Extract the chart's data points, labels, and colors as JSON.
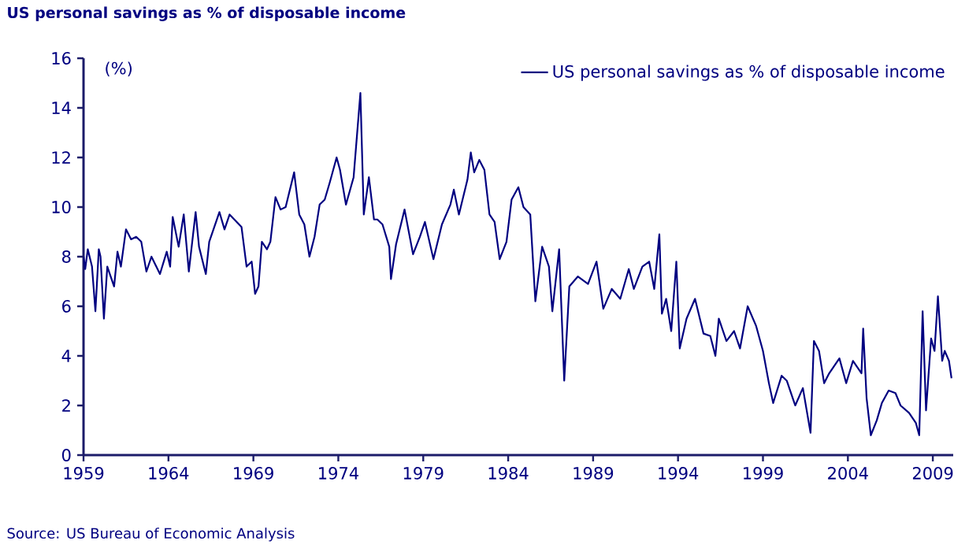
{
  "chart_data": {
    "type": "line",
    "title": "US personal savings as % of disposable income",
    "ylabel": "(%)",
    "annotations": [
      "Source: US Bureau of Economic Analysis"
    ],
    "xlim": [
      1959,
      2010.2
    ],
    "xticks": [
      1959,
      1964,
      1969,
      1974,
      1979,
      1984,
      1989,
      1994,
      1999,
      2004,
      2009
    ],
    "ylim": [
      0,
      16
    ],
    "yticks": [
      0,
      2,
      4,
      6,
      8,
      10,
      12,
      14,
      16
    ],
    "grid": false,
    "legend": "top right",
    "marker": "none",
    "line_style": "solid",
    "series": [
      {
        "name": "US personal savings as % of disposable income",
        "color": "#000080",
        "x": [
          1959.0,
          1959.1,
          1959.25,
          1959.5,
          1959.7,
          1959.9,
          1960.0,
          1960.2,
          1960.4,
          1960.8,
          1961.0,
          1961.2,
          1961.5,
          1961.8,
          1962.1,
          1962.4,
          1962.7,
          1963.0,
          1963.5,
          1963.9,
          1964.1,
          1964.25,
          1964.6,
          1964.9,
          1965.2,
          1965.6,
          1965.8,
          1966.2,
          1966.4,
          1967.0,
          1967.3,
          1967.6,
          1968.3,
          1968.6,
          1968.9,
          1969.1,
          1969.3,
          1969.5,
          1969.8,
          1970.0,
          1970.3,
          1970.6,
          1970.9,
          1971.4,
          1971.7,
          1972.0,
          1972.3,
          1972.6,
          1972.9,
          1973.2,
          1973.5,
          1973.9,
          1974.1,
          1974.45,
          1974.9,
          1975.3,
          1975.5,
          1975.8,
          1976.1,
          1976.3,
          1976.6,
          1977.0,
          1977.1,
          1977.4,
          1977.9,
          1978.4,
          1978.8,
          1979.1,
          1979.6,
          1980.1,
          1980.6,
          1980.8,
          1981.1,
          1981.6,
          1981.8,
          1982.0,
          1982.3,
          1982.6,
          1982.9,
          1983.2,
          1983.5,
          1983.9,
          1984.2,
          1984.6,
          1984.9,
          1985.3,
          1985.6,
          1986.0,
          1986.4,
          1986.6,
          1987.0,
          1987.3,
          1987.6,
          1988.1,
          1988.7,
          1989.2,
          1989.6,
          1990.1,
          1990.6,
          1991.1,
          1991.4,
          1991.9,
          1992.3,
          1992.6,
          1992.9,
          1993.05,
          1993.3,
          1993.6,
          1993.9,
          1994.1,
          1994.5,
          1995.0,
          1995.5,
          1995.9,
          1996.2,
          1996.4,
          1996.85,
          1997.3,
          1997.65,
          1998.1,
          1998.6,
          1999.0,
          1999.35,
          1999.6,
          2000.1,
          2000.4,
          2000.9,
          2001.35,
          2001.8,
          2002.0,
          2002.3,
          2002.6,
          2002.9,
          2003.5,
          2003.9,
          2004.3,
          2004.8,
          2004.9,
          2005.1,
          2005.35,
          2005.7,
          2006.0,
          2006.4,
          2006.8,
          2007.1,
          2007.6,
          2008.0,
          2008.2,
          2008.4,
          2008.6,
          2008.9,
          2009.1,
          2009.3,
          2009.55,
          2009.7,
          2009.95,
          2010.1
        ],
        "values": [
          8.0,
          7.5,
          8.3,
          7.6,
          5.8,
          8.3,
          8.0,
          5.5,
          7.6,
          6.8,
          8.2,
          7.6,
          9.1,
          8.7,
          8.8,
          8.6,
          7.4,
          8.0,
          7.3,
          8.2,
          7.6,
          9.6,
          8.4,
          9.7,
          7.4,
          9.8,
          8.4,
          7.3,
          8.6,
          9.8,
          9.1,
          9.7,
          9.2,
          7.6,
          7.8,
          6.5,
          6.8,
          8.6,
          8.3,
          8.6,
          10.4,
          9.9,
          10.0,
          11.4,
          9.7,
          9.3,
          8.0,
          8.8,
          10.1,
          10.3,
          11.0,
          12.0,
          11.5,
          10.1,
          11.2,
          14.6,
          9.7,
          11.2,
          9.5,
          9.5,
          9.3,
          8.4,
          7.1,
          8.5,
          9.9,
          8.1,
          8.8,
          9.4,
          7.9,
          9.3,
          10.1,
          10.7,
          9.7,
          11.1,
          12.2,
          11.4,
          11.9,
          11.5,
          9.7,
          9.4,
          7.9,
          8.6,
          10.3,
          10.8,
          10.0,
          9.7,
          6.2,
          8.4,
          7.6,
          5.8,
          8.3,
          3.0,
          6.8,
          7.2,
          6.9,
          7.8,
          5.9,
          6.7,
          6.3,
          7.5,
          6.7,
          7.6,
          7.8,
          6.7,
          8.9,
          5.7,
          6.3,
          5.0,
          7.8,
          4.3,
          5.5,
          6.3,
          4.9,
          4.8,
          4.0,
          5.5,
          4.6,
          5.0,
          4.3,
          6.0,
          5.2,
          4.2,
          2.9,
          2.1,
          3.2,
          3.0,
          2.0,
          2.7,
          0.9,
          4.6,
          4.2,
          2.9,
          3.3,
          3.9,
          2.9,
          3.8,
          3.3,
          5.1,
          2.3,
          0.8,
          1.4,
          2.1,
          2.6,
          2.5,
          2.0,
          1.7,
          1.3,
          0.8,
          5.8,
          1.8,
          4.7,
          4.2,
          6.4,
          3.8,
          4.2,
          3.8,
          3.1
        ]
      }
    ]
  }
}
